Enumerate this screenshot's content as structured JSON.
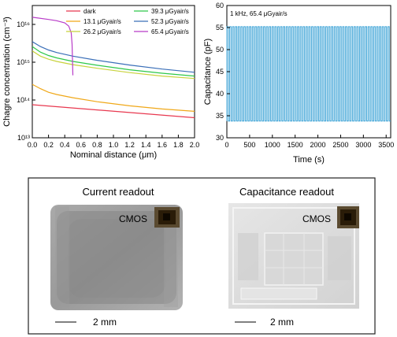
{
  "chart_data": [
    {
      "type": "line",
      "xlabel": "Nominal distance (μm)",
      "ylabel": "Chagre concentration (cm⁻³)",
      "x_ticks": [
        "0.0",
        "0.2",
        "0.4",
        "0.6",
        "0.8",
        "1.0",
        "1.2",
        "1.4",
        "1.6",
        "1.8",
        "2.0"
      ],
      "y_ticks": [
        "10¹³",
        "10¹⁴",
        "10¹⁵",
        "10¹⁶"
      ],
      "xlim": [
        0,
        2.0
      ],
      "ylim_log10": [
        13,
        16.5
      ],
      "y_scale": "log",
      "legend_position": "top",
      "series": [
        {
          "name": "dark",
          "color": "#e8384f",
          "x": [
            0,
            2.0
          ],
          "y": [
            75000000000000.0,
            34000000000000.0
          ]
        },
        {
          "name": "13.1 μGyair/s",
          "color": "#f0a818",
          "x": [
            0,
            0.1,
            0.2,
            0.3,
            0.5,
            0.8,
            1.2,
            1.6,
            2.0
          ],
          "y": [
            260000000000000.0,
            200000000000000.0,
            160000000000000.0,
            140000000000000.0,
            115000000000000.0,
            90000000000000.0,
            70000000000000.0,
            58000000000000.0,
            50000000000000.0
          ]
        },
        {
          "name": "26.2 μGyair/s",
          "color": "#c8d23c",
          "x": [
            0,
            0.1,
            0.2,
            0.3,
            0.5,
            0.8,
            1.2,
            1.6,
            2.0
          ],
          "y": [
            2000000000000000.0,
            1450000000000000.0,
            1200000000000000.0,
            1050000000000000.0,
            860000000000000.0,
            690000000000000.0,
            530000000000000.0,
            430000000000000.0,
            370000000000000.0
          ]
        },
        {
          "name": "39.3 μGyair/s",
          "color": "#2ec84a",
          "x": [
            0,
            0.1,
            0.2,
            0.3,
            0.5,
            0.8,
            1.2,
            1.6,
            2.0
          ],
          "y": [
            2600000000000000.0,
            1850000000000000.0,
            1500000000000000.0,
            1300000000000000.0,
            1050000000000000.0,
            830000000000000.0,
            630000000000000.0,
            510000000000000.0,
            430000000000000.0
          ]
        },
        {
          "name": "52.3 μGyair/s",
          "color": "#3a6fb8",
          "x": [
            0,
            0.1,
            0.2,
            0.3,
            0.5,
            0.8,
            1.2,
            1.6,
            2.0
          ],
          "y": [
            3500000000000000.0,
            2600000000000000.0,
            2100000000000000.0,
            1800000000000000.0,
            1450000000000000.0,
            1120000000000000.0,
            840000000000000.0,
            660000000000000.0,
            540000000000000.0
          ]
        },
        {
          "name": "65.4 μGyair/s",
          "color": "#b83cc8",
          "x": [
            0,
            0.2,
            0.3,
            0.4,
            0.45,
            0.48,
            0.49,
            0.495,
            0.5
          ],
          "y": [
            1.55e+16,
            1.35e+16,
            1.25e+16,
            1.1e+16,
            9000000000000000.0,
            6000000000000000.0,
            3000000000000000.0,
            1200000000000000.0,
            450000000000000.0
          ]
        }
      ]
    },
    {
      "type": "line",
      "xlabel": "Time (s)",
      "ylabel": "Capacitance (pF)",
      "annotation": "1 kHz, 65.4 μGyair/s",
      "x_ticks": [
        "0",
        "500",
        "1000",
        "1500",
        "2000",
        "2500",
        "3000",
        "3500"
      ],
      "y_ticks": [
        "30",
        "35",
        "40",
        "45",
        "50",
        "55",
        "60"
      ],
      "xlim": [
        0,
        3600
      ],
      "ylim": [
        30,
        60
      ],
      "color": "#3aa2d6",
      "series": [
        {
          "name": "",
          "square_wave": {
            "low": 33.8,
            "high": 55.2,
            "cycles": 58
          }
        }
      ]
    }
  ],
  "images_panel": {
    "left": {
      "title": "Current readout",
      "chip_label": "CMOS",
      "scale_text": "2 mm"
    },
    "right": {
      "title": "Capacitance readout",
      "chip_label": "CMOS",
      "scale_text": "2 mm"
    }
  }
}
